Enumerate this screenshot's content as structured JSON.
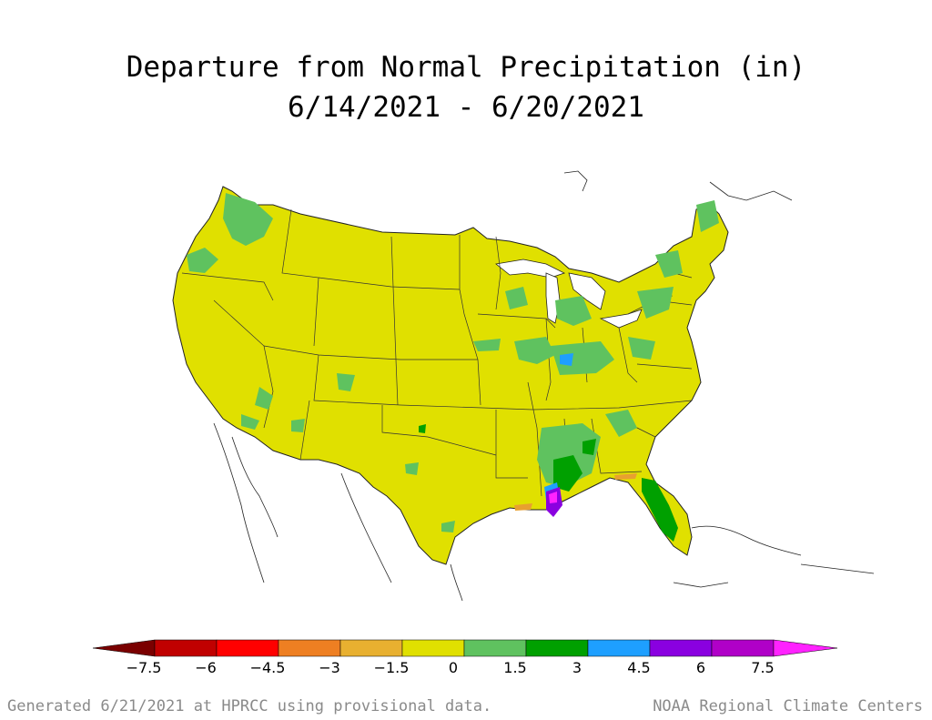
{
  "title": {
    "line1": "Departure from Normal Precipitation (in)",
    "line2": "6/14/2021 - 6/20/2021"
  },
  "colors": {
    "background": "#ffffff",
    "base_near_normal": "#e0e000",
    "light_green": "#5fc25f",
    "dark_green": "#00a000",
    "blue": "#1e9fff",
    "purple": "#8a00e0",
    "magenta": "#ff22ff",
    "orange": "#e8a030"
  },
  "legend": {
    "tick_labels": [
      "-7.5",
      "-6",
      "-4.5",
      "-3",
      "-1.5",
      "0",
      "1.5",
      "3",
      "4.5",
      "6",
      "7.5"
    ],
    "colors": [
      "#7a0000",
      "#c00000",
      "#ff0000",
      "#ee7f22",
      "#e8b030",
      "#e0e000",
      "#5fc25f",
      "#00a000",
      "#1e9fff",
      "#8a00e0",
      "#b000c8",
      "#ff22ff"
    ]
  },
  "footer": {
    "left": "Generated 6/21/2021 at HPRCC using provisional data.",
    "right": "NOAA Regional Climate Centers"
  }
}
